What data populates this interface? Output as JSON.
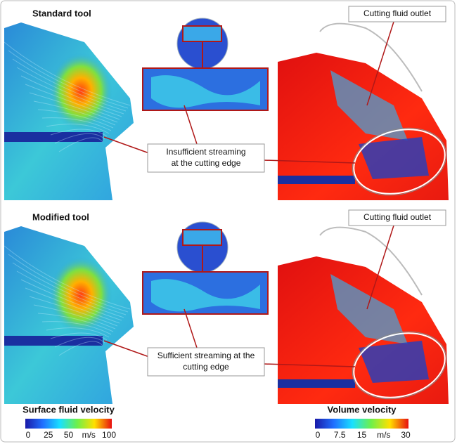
{
  "panels": [
    {
      "title": "Standard tool",
      "outlet_label": "Cutting fluid outlet",
      "annotation": [
        "Insufficient streaming",
        "at the cutting edge"
      ]
    },
    {
      "title": "Modified tool",
      "outlet_label": "Cutting fluid outlet",
      "annotation": [
        "Sufficient streaming at the",
        "cutting edge"
      ]
    }
  ],
  "colorbars": [
    {
      "title": "Surface fluid velocity",
      "unit": "m/s",
      "lim": [
        0,
        100
      ],
      "ticks": [
        0,
        25,
        50,
        100
      ]
    },
    {
      "title": "Volume velocity",
      "unit": "m/s",
      "lim": [
        0,
        30
      ],
      "ticks": [
        0,
        7.5,
        15,
        30
      ]
    }
  ]
}
